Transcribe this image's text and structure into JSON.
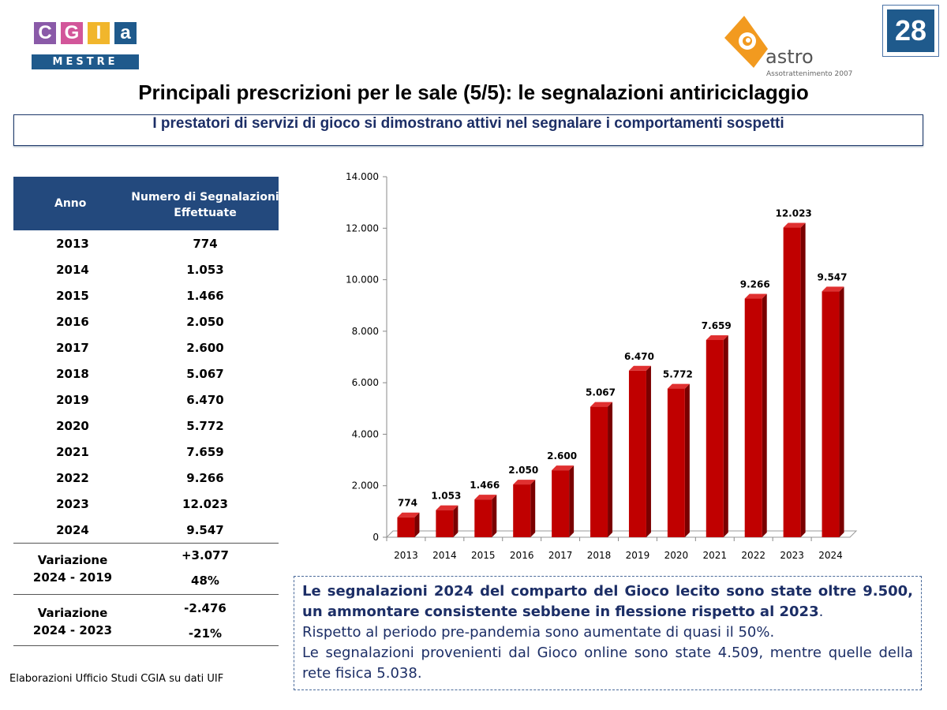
{
  "logos": {
    "cgia_letters": [
      "C",
      "G",
      "I",
      "a"
    ],
    "cgia_sub": "MESTRE",
    "astro_name": "astro",
    "astro_sub": "Assotrattenimento 2007"
  },
  "page_number": "28",
  "title": "Principali prescrizioni per le sale (5/5): le segnalazioni antiriciclaggio",
  "subtitle": "I prestatori di servizi di gioco si dimostrano attivi nel segnalare i comportamenti sospetti",
  "table": {
    "headers": [
      "Anno",
      "Numero di Segnalazioni Effettuate"
    ],
    "rows": [
      [
        "2013",
        "774"
      ],
      [
        "2014",
        "1.053"
      ],
      [
        "2015",
        "1.466"
      ],
      [
        "2016",
        "2.050"
      ],
      [
        "2017",
        "2.600"
      ],
      [
        "2018",
        "5.067"
      ],
      [
        "2019",
        "6.470"
      ],
      [
        "2020",
        "5.772"
      ],
      [
        "2021",
        "7.659"
      ],
      [
        "2022",
        "9.266"
      ],
      [
        "2023",
        "12.023"
      ],
      [
        "2024",
        "9.547"
      ]
    ],
    "variations": [
      {
        "label1": "Variazione",
        "label2": "2024 - 2019",
        "abs": "+3.077",
        "pct": "48%"
      },
      {
        "label1": "Variazione",
        "label2": "2024 - 2023",
        "abs": "-2.476",
        "pct": "-21%"
      }
    ]
  },
  "chart_data": {
    "type": "bar",
    "categories": [
      "2013",
      "2014",
      "2015",
      "2016",
      "2017",
      "2018",
      "2019",
      "2020",
      "2021",
      "2022",
      "2023",
      "2024"
    ],
    "values": [
      774,
      1053,
      1466,
      2050,
      2600,
      5067,
      6470,
      5772,
      7659,
      9266,
      12023,
      9547
    ],
    "data_labels": [
      "774",
      "1.053",
      "1.466",
      "2.050",
      "2.600",
      "5.067",
      "6.470",
      "5.772",
      "7.659",
      "9.266",
      "12.023",
      "9.547"
    ],
    "ylim": [
      0,
      14000
    ],
    "yticks": [
      0,
      2000,
      4000,
      6000,
      8000,
      10000,
      12000,
      14000
    ],
    "ytick_labels": [
      "0",
      "2.000",
      "4.000",
      "6.000",
      "8.000",
      "10.000",
      "12.000",
      "14.000"
    ],
    "bar_color": "#c00000",
    "grid": false,
    "style": "3d"
  },
  "note": {
    "bold": "Le segnalazioni 2024 del comparto del Gioco lecito sono state oltre 9.500, un ammontare consistente sebbene in flessione rispetto al 2023",
    "bold_end": ".",
    "line2": "Rispetto al periodo pre-pandemia sono aumentate di quasi il 50%.",
    "line3": "Le segnalazioni provenienti dal Gioco online sono state 4.509, mentre quelle della rete fisica 5.038."
  },
  "source": "Elaborazioni Ufficio Studi CGIA su dati UIF"
}
